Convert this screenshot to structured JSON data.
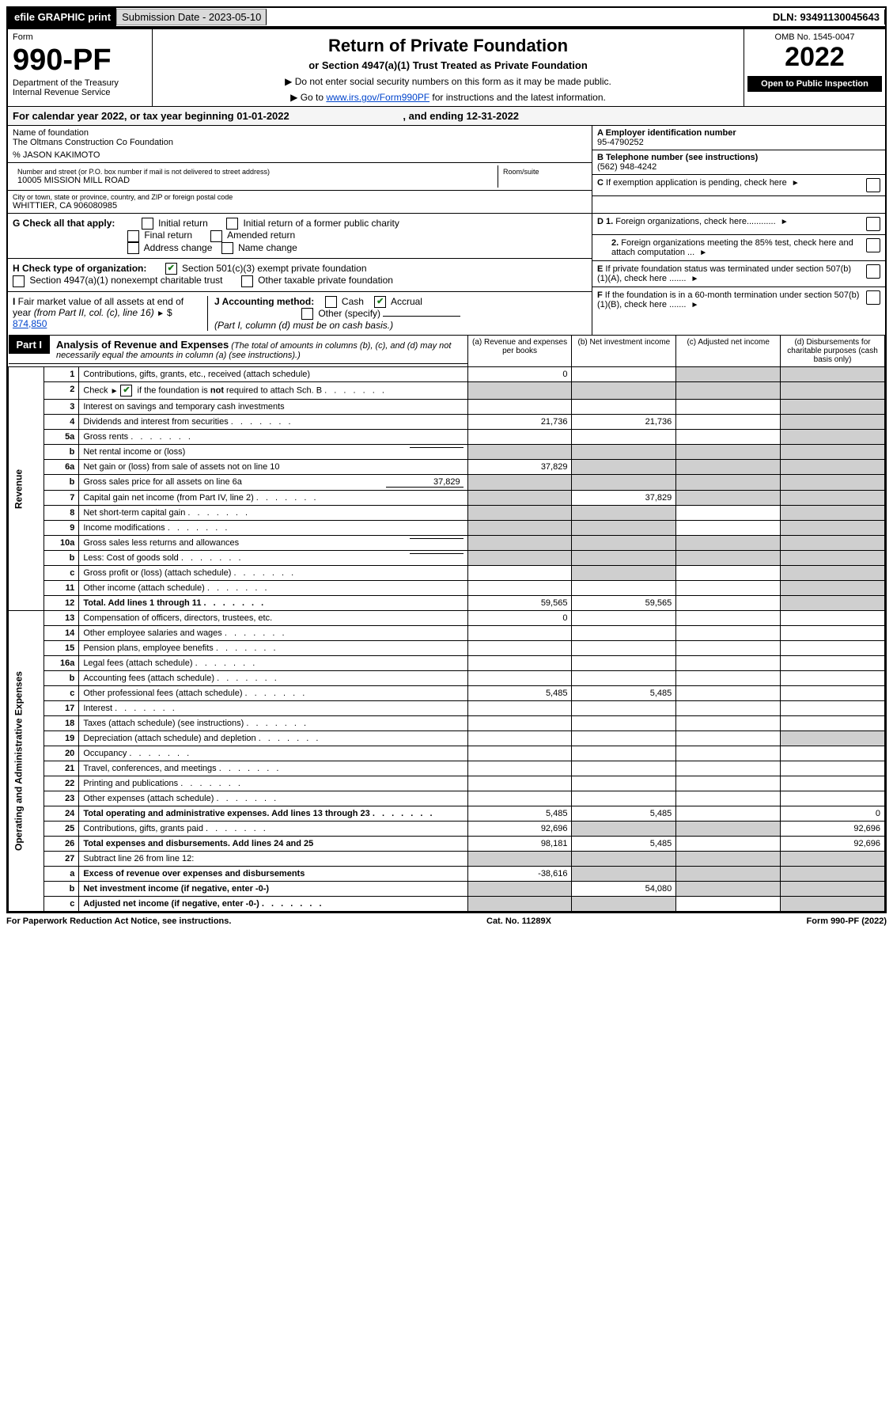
{
  "efile_label": "efile GRAPHIC print",
  "submission_label": "Submission Date - 2023-05-10",
  "dln": "DLN: 93491130045643",
  "form_label": "Form",
  "form_number": "990-PF",
  "dept": "Department of the Treasury",
  "irs": "Internal Revenue Service",
  "omb": "OMB No. 1545-0047",
  "title": "Return of Private Foundation",
  "subtitle": "or Section 4947(a)(1) Trust Treated as Private Foundation",
  "instr1": "▶ Do not enter social security numbers on this form as it may be made public.",
  "instr2_pre": "▶ Go to ",
  "instr2_link": "www.irs.gov/Form990PF",
  "instr2_post": " for instructions and the latest information.",
  "year": "2022",
  "open_public": "Open to Public Inspection",
  "cal_year_pre": "For calendar year 2022, or tax year beginning ",
  "cal_year_begin": "01-01-2022",
  "cal_year_mid": ", and ending ",
  "cal_year_end": "12-31-2022",
  "name_lbl": "Name of foundation",
  "name_val": "The Oltmans Construction Co Foundation",
  "care_of": "% JASON KAKIMOTO",
  "addr_lbl": "Number and street (or P.O. box number if mail is not delivered to street address)",
  "room_lbl": "Room/suite",
  "addr_val": "10005 MISSION MILL ROAD",
  "city_lbl": "City or town, state or province, country, and ZIP or foreign postal code",
  "city_val": "WHITTIER, CA  906080985",
  "ein_lbl": "A Employer identification number",
  "ein_val": "95-4790252",
  "tel_lbl": "B Telephone number (see instructions)",
  "tel_val": "(562) 948-4242",
  "c_lbl": "C If exemption application is pending, check here",
  "d1_lbl": "D 1. Foreign organizations, check here............",
  "d2_lbl": "2. Foreign organizations meeting the 85% test, check here and attach computation ...",
  "e_lbl": "E  If private foundation status was terminated under section 507(b)(1)(A), check here .......",
  "f_lbl": "F  If the foundation is in a 60-month termination under section 507(b)(1)(B), check here .......",
  "g_lbl": "G Check all that apply:",
  "g_opts": [
    "Initial return",
    "Initial return of a former public charity",
    "Final return",
    "Amended return",
    "Address change",
    "Name change"
  ],
  "h_lbl": "H Check type of organization:",
  "h_opt1": "Section 501(c)(3) exempt private foundation",
  "h_opt2": "Section 4947(a)(1) nonexempt charitable trust",
  "h_opt3": "Other taxable private foundation",
  "i_lbl": "I Fair market value of all assets at end of year (from Part II, col. (c), line 16)",
  "i_val": "874,850",
  "j_lbl": "J Accounting method:",
  "j_opts": [
    "Cash",
    "Accrual",
    "Other (specify)"
  ],
  "j_note": "(Part I, column (d) must be on cash basis.)",
  "part1": "Part I",
  "part1_title": "Analysis of Revenue and Expenses",
  "part1_desc": " (The total of amounts in columns (b), (c), and (d) may not necessarily equal the amounts in column (a) (see instructions).)",
  "col_a": "(a)    Revenue and expenses per books",
  "col_b": "(b)    Net investment income",
  "col_c": "(c)    Adjusted net income",
  "col_d": "(d)   Disbursements for charitable purposes (cash basis only)",
  "side_rev": "Revenue",
  "side_exp": "Operating and Administrative Expenses",
  "rows": [
    {
      "n": "1",
      "d": "Contributions, gifts, grants, etc., received (attach schedule)",
      "a": "0",
      "b": "",
      "c": "shaded",
      "dd": "shaded"
    },
    {
      "n": "2",
      "d": "Check ▶ ☑ if the foundation is not required to attach Sch. B",
      "a": "shaded",
      "b": "shaded",
      "c": "shaded",
      "dd": "shaded",
      "dots": true
    },
    {
      "n": "3",
      "d": "Interest on savings and temporary cash investments",
      "a": "",
      "b": "",
      "c": "",
      "dd": "shaded"
    },
    {
      "n": "4",
      "d": "Dividends and interest from securities",
      "a": "21,736",
      "b": "21,736",
      "c": "",
      "dd": "shaded",
      "dots": true
    },
    {
      "n": "5a",
      "d": "Gross rents",
      "a": "",
      "b": "",
      "c": "",
      "dd": "shaded",
      "dots": true
    },
    {
      "n": "b",
      "d": "Net rental income or (loss)",
      "a": "shaded",
      "b": "shaded",
      "c": "shaded",
      "dd": "shaded",
      "sub": true
    },
    {
      "n": "6a",
      "d": "Net gain or (loss) from sale of assets not on line 10",
      "a": "37,829",
      "b": "shaded",
      "c": "shaded",
      "dd": "shaded"
    },
    {
      "n": "b",
      "d": "Gross sales price for all assets on line 6a",
      "a": "shaded",
      "b": "shaded",
      "c": "shaded",
      "dd": "shaded",
      "sub": true,
      "subval": "37,829"
    },
    {
      "n": "7",
      "d": "Capital gain net income (from Part IV, line 2)",
      "a": "shaded",
      "b": "37,829",
      "c": "shaded",
      "dd": "shaded",
      "dots": true
    },
    {
      "n": "8",
      "d": "Net short-term capital gain",
      "a": "shaded",
      "b": "shaded",
      "c": "",
      "dd": "shaded",
      "dots": true
    },
    {
      "n": "9",
      "d": "Income modifications",
      "a": "shaded",
      "b": "shaded",
      "c": "",
      "dd": "shaded",
      "dots": true
    },
    {
      "n": "10a",
      "d": "Gross sales less returns and allowances",
      "a": "shaded",
      "b": "shaded",
      "c": "shaded",
      "dd": "shaded",
      "sub": true
    },
    {
      "n": "b",
      "d": "Less: Cost of goods sold",
      "a": "shaded",
      "b": "shaded",
      "c": "shaded",
      "dd": "shaded",
      "sub": true,
      "dots": true
    },
    {
      "n": "c",
      "d": "Gross profit or (loss) (attach schedule)",
      "a": "",
      "b": "shaded",
      "c": "",
      "dd": "shaded",
      "dots": true
    },
    {
      "n": "11",
      "d": "Other income (attach schedule)",
      "a": "",
      "b": "",
      "c": "",
      "dd": "shaded",
      "dots": true
    },
    {
      "n": "12",
      "d": "Total. Add lines 1 through 11",
      "a": "59,565",
      "b": "59,565",
      "c": "",
      "dd": "shaded",
      "bold": true,
      "dots": true
    }
  ],
  "exp_rows": [
    {
      "n": "13",
      "d": "Compensation of officers, directors, trustees, etc.",
      "a": "0",
      "b": "",
      "c": "",
      "dd": ""
    },
    {
      "n": "14",
      "d": "Other employee salaries and wages",
      "a": "",
      "b": "",
      "c": "",
      "dd": "",
      "dots": true
    },
    {
      "n": "15",
      "d": "Pension plans, employee benefits",
      "a": "",
      "b": "",
      "c": "",
      "dd": "",
      "dots": true
    },
    {
      "n": "16a",
      "d": "Legal fees (attach schedule)",
      "a": "",
      "b": "",
      "c": "",
      "dd": "",
      "dots": true
    },
    {
      "n": "b",
      "d": "Accounting fees (attach schedule)",
      "a": "",
      "b": "",
      "c": "",
      "dd": "",
      "dots": true
    },
    {
      "n": "c",
      "d": "Other professional fees (attach schedule)",
      "a": "5,485",
      "b": "5,485",
      "c": "",
      "dd": "",
      "dots": true
    },
    {
      "n": "17",
      "d": "Interest",
      "a": "",
      "b": "",
      "c": "",
      "dd": "",
      "dots": true
    },
    {
      "n": "18",
      "d": "Taxes (attach schedule) (see instructions)",
      "a": "",
      "b": "",
      "c": "",
      "dd": "",
      "dots": true
    },
    {
      "n": "19",
      "d": "Depreciation (attach schedule) and depletion",
      "a": "",
      "b": "",
      "c": "",
      "dd": "shaded",
      "dots": true
    },
    {
      "n": "20",
      "d": "Occupancy",
      "a": "",
      "b": "",
      "c": "",
      "dd": "",
      "dots": true
    },
    {
      "n": "21",
      "d": "Travel, conferences, and meetings",
      "a": "",
      "b": "",
      "c": "",
      "dd": "",
      "dots": true
    },
    {
      "n": "22",
      "d": "Printing and publications",
      "a": "",
      "b": "",
      "c": "",
      "dd": "",
      "dots": true
    },
    {
      "n": "23",
      "d": "Other expenses (attach schedule)",
      "a": "",
      "b": "",
      "c": "",
      "dd": "",
      "dots": true
    },
    {
      "n": "24",
      "d": "Total operating and administrative expenses. Add lines 13 through 23",
      "a": "5,485",
      "b": "5,485",
      "c": "",
      "dd": "0",
      "bold": true,
      "dots": true
    },
    {
      "n": "25",
      "d": "Contributions, gifts, grants paid",
      "a": "92,696",
      "b": "shaded",
      "c": "shaded",
      "dd": "92,696",
      "dots": true
    },
    {
      "n": "26",
      "d": "Total expenses and disbursements. Add lines 24 and 25",
      "a": "98,181",
      "b": "5,485",
      "c": "",
      "dd": "92,696",
      "bold": true
    },
    {
      "n": "27",
      "d": "Subtract line 26 from line 12:",
      "a": "shaded",
      "b": "shaded",
      "c": "shaded",
      "dd": "shaded"
    },
    {
      "n": "a",
      "d": "Excess of revenue over expenses and disbursements",
      "a": "-38,616",
      "b": "shaded",
      "c": "shaded",
      "dd": "shaded",
      "bold": true
    },
    {
      "n": "b",
      "d": "Net investment income (if negative, enter -0-)",
      "a": "shaded",
      "b": "54,080",
      "c": "shaded",
      "dd": "shaded",
      "bold": true
    },
    {
      "n": "c",
      "d": "Adjusted net income (if negative, enter -0-)",
      "a": "shaded",
      "b": "shaded",
      "c": "",
      "dd": "shaded",
      "bold": true,
      "dots": true
    }
  ],
  "footer_left": "For Paperwork Reduction Act Notice, see instructions.",
  "footer_mid": "Cat. No. 11289X",
  "footer_right": "Form 990-PF (2022)"
}
